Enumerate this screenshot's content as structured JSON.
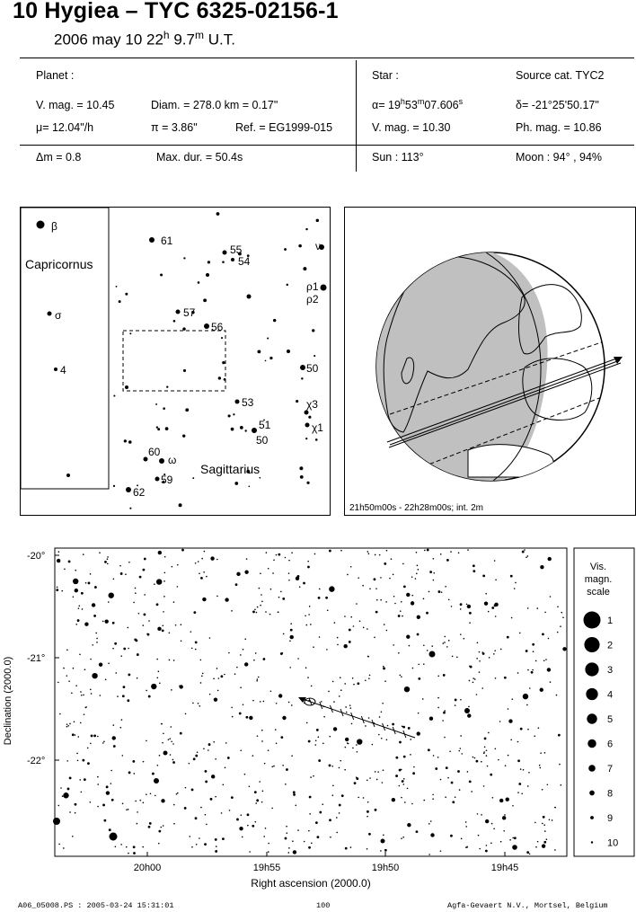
{
  "header": {
    "title": "10 Hygiea  –  TYC 6325-02156-1",
    "date_prefix": "2006 may 10  22",
    "time_h": "h",
    "time_mid": " 9.7",
    "time_m": "m",
    "time_suffix": " U.T."
  },
  "info": {
    "planet_label": "Planet :",
    "vmag": "V. mag. = 10.45",
    "diam": "Diam. = 278.0 km = 0.17\"",
    "mu": "μ=  12.04\"/h",
    "pi": "π =  3.86\"",
    "ref": "Ref. = EG1999-015",
    "star_label": "Star :",
    "source_cat": "Source cat.  TYC2",
    "alpha_pre": "α= 19",
    "alpha_h": "h",
    "alpha_mid": "53",
    "alpha_m": "m",
    "alpha_mid2": "07.606",
    "alpha_s": "s",
    "delta": "δ= -21°25'50.17\"",
    "star_vmag": "V. mag. = 10.30",
    "ph_mag": "Ph. mag. = 10.86",
    "dm": "Δm = 0.8",
    "maxdur": "Max. dur. = 50.4s",
    "sun": "Sun : 113°",
    "moon": "Moon :  94° , 94%"
  },
  "finder": {
    "constellations": [
      "Capricornus",
      "Sagittarius"
    ],
    "labels": [
      {
        "t": "β",
        "c": [
          56,
          251
        ]
      },
      {
        "t": "61",
        "c": [
          178,
          267
        ]
      },
      {
        "t": "55",
        "c": [
          255,
          277
        ]
      },
      {
        "t": "54",
        "c": [
          264,
          290
        ]
      },
      {
        "t": "ν",
        "c": [
          350,
          273
        ]
      },
      {
        "t": "ρ1",
        "c": [
          340,
          318
        ]
      },
      {
        "t": "ρ2",
        "c": [
          340,
          332
        ]
      },
      {
        "t": "σ",
        "c": [
          60,
          350
        ]
      },
      {
        "t": "57",
        "c": [
          203,
          347
        ]
      },
      {
        "t": "56",
        "c": [
          234,
          363
        ]
      },
      {
        "t": "4",
        "c": [
          66,
          411
        ]
      },
      {
        "t": "50",
        "c": [
          340,
          409
        ]
      },
      {
        "t": "53",
        "c": [
          268,
          447
        ]
      },
      {
        "t": "χ3",
        "c": [
          340,
          449
        ]
      },
      {
        "t": "51",
        "c": [
          287,
          472
        ]
      },
      {
        "t": "χ1",
        "c": [
          346,
          475
        ]
      },
      {
        "t": "50",
        "c": [
          284,
          489
        ]
      },
      {
        "t": "60",
        "c": [
          164,
          502
        ]
      },
      {
        "t": "ω",
        "c": [
          186,
          511
        ]
      },
      {
        "t": "59",
        "c": [
          178,
          533
        ]
      },
      {
        "t": "62",
        "c": [
          147,
          547
        ]
      }
    ]
  },
  "globe": {
    "caption": "21h50m00s - 22h28m00s; int.  2m"
  },
  "chart_data": {
    "type": "scatter",
    "xlabel": "Right ascension (2000.0)",
    "ylabel": "Declination (2000.0)",
    "x_tick_labels": [
      "20h00",
      "19h55",
      "19h50",
      "19h45"
    ],
    "y_tick_labels": [
      "-20°",
      "-21°",
      "-22°"
    ],
    "path_ticks": 10,
    "legend": {
      "title": [
        "Vis.",
        "magn.",
        "scale"
      ],
      "magnitudes": [
        "1",
        "2",
        "3",
        "4",
        "5",
        "6",
        "7",
        "8",
        "9",
        "10"
      ]
    }
  },
  "footer": {
    "left": "A06_05008.PS : 2005-03-24 15:31:01",
    "mid": "100",
    "right": "Agfa-Gevaert N.V., Mortsel, Belgium"
  }
}
